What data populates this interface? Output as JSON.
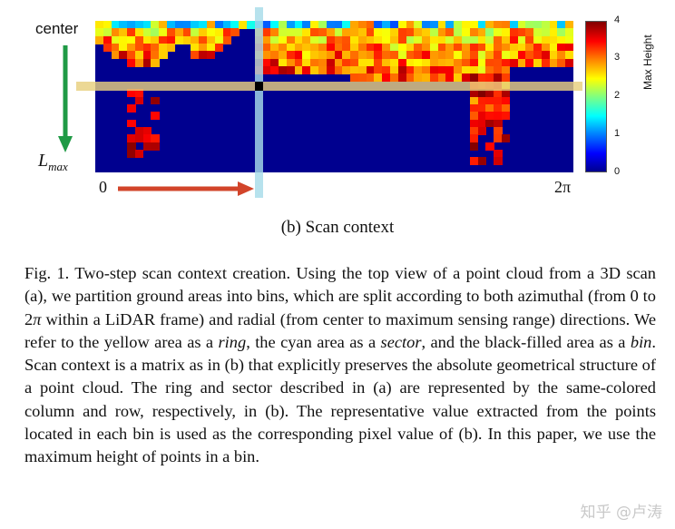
{
  "figure": {
    "labels": {
      "center": "center",
      "lmax_base": "L",
      "lmax_sub": "max",
      "zero": "0",
      "two_pi": "2π"
    },
    "colorbar": {
      "title": "Max Height",
      "ticks": [
        "4",
        "3",
        "2",
        "1",
        "0"
      ],
      "min": 0,
      "max": 4,
      "colormap": "jet"
    },
    "colors": {
      "ring": "#e8cf7e",
      "sector": "#a7dce9",
      "radial_arrow": "#1f9a45",
      "azimuth_arrow": "#d2442a",
      "bin": "#000000"
    }
  },
  "caption": "(b) Scan context",
  "paragraph": {
    "p1": "Fig. 1.   Two-step scan context creation. Using the top view of a point cloud from a 3D scan (a), we partition ground areas into bins, which are split according to both azimuthal (from 0 to 2",
    "pi": "π",
    "p2": " within a LiDAR frame) and radial (from center to maximum sensing range) directions. We refer to the yellow area as a ",
    "ring": "ring",
    "p3": ", the cyan area as a ",
    "sector": "sector",
    "p4": ", and the black-filled area as a ",
    "bin": "bin",
    "p5": ". Scan context is a matrix as in (b) that explicitly preserves the absolute geometrical structure of a point cloud. The ring and sector described in (a) are represented by the same-colored column and row, respectively, in (b). The representative value extracted from the points located in each bin is used as the corresponding pixel value of (b). In this paper, we use the maximum height of points in a bin."
  },
  "watermark": "知乎 @卢涛"
}
